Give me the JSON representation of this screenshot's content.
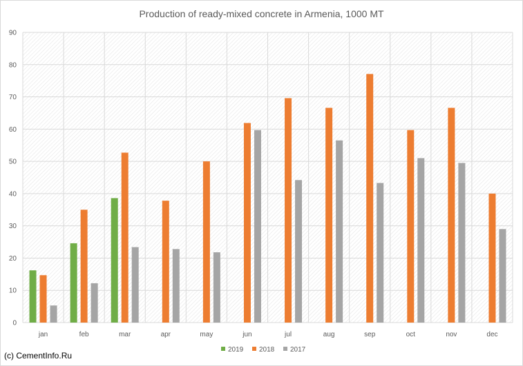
{
  "chart_data": {
    "type": "bar",
    "title": "Production of ready-mixed concrete in Armenia, 1000 MT",
    "xlabel": "",
    "ylabel": "",
    "ylim": [
      0,
      90
    ],
    "yticks": [
      0,
      10,
      20,
      30,
      40,
      50,
      60,
      70,
      80,
      90
    ],
    "grid": true,
    "legend_position": "bottom",
    "categories": [
      "jan",
      "feb",
      "mar",
      "apr",
      "may",
      "jun",
      "jul",
      "aug",
      "sep",
      "oct",
      "nov",
      "dec"
    ],
    "series": [
      {
        "name": "2019",
        "color": "#70ad47",
        "values": [
          16.2,
          24.6,
          38.6,
          null,
          null,
          null,
          null,
          null,
          null,
          null,
          null,
          null
        ]
      },
      {
        "name": "2018",
        "color": "#ed7d31",
        "values": [
          14.7,
          35.0,
          52.7,
          37.8,
          50.0,
          61.9,
          69.6,
          66.6,
          77.1,
          59.7,
          66.6,
          40.0
        ]
      },
      {
        "name": "2017",
        "color": "#a5a5a5",
        "values": [
          5.3,
          12.2,
          23.4,
          22.8,
          21.8,
          59.7,
          44.2,
          56.5,
          43.3,
          51.0,
          49.5,
          29.0
        ]
      }
    ]
  },
  "footer": {
    "credit": "(c) CementInfo.Ru"
  }
}
